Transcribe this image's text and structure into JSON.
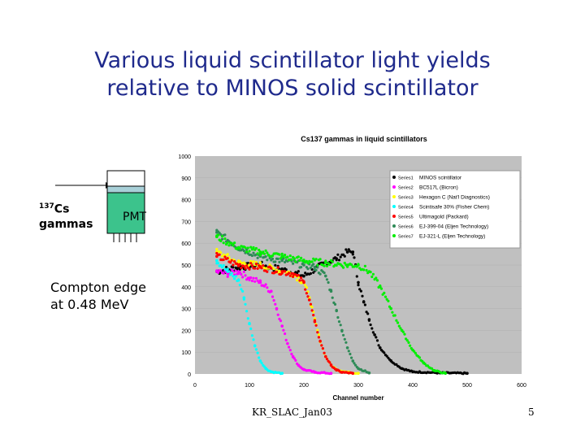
{
  "slide": {
    "title_line1": "Various liquid scintillator light yields",
    "title_line2": "relative to MINOS solid scintillator",
    "source_sup": "137",
    "source_name": "Cs",
    "source_label": "gammas",
    "pmt_label": "PMT",
    "compton_line1": "Compton edge",
    "compton_line2": "at 0.48 MeV",
    "footer": "KR_SLAC_Jan03",
    "page_number": "5"
  },
  "colors": {
    "title": "#1f2a8c",
    "plot_bg": "#c0c0c0",
    "vial_fill": "#3cc38c",
    "vial_cap": "#a8d0d8"
  },
  "chart_data": {
    "type": "scatter",
    "title": "Cs137 gammas in liquid scintillators",
    "xlabel": "Channel number",
    "ylabel": "",
    "xlim": [
      0,
      600
    ],
    "ylim": [
      0,
      1000
    ],
    "x_ticks": [
      "0",
      "100",
      "200",
      "300",
      "400",
      "500",
      "600"
    ],
    "y_ticks": [
      "0",
      "100",
      "200",
      "300",
      "400",
      "500",
      "600",
      "700",
      "800",
      "900",
      "1000"
    ],
    "legend_position": "top-right",
    "series": [
      {
        "name": "Series1",
        "label": "MINOS scintillator",
        "color": "#000000",
        "x": [
          40,
          80,
          120,
          160,
          200,
          240,
          260,
          280,
          290,
          300,
          310,
          320,
          330,
          340,
          360,
          380,
          400,
          450,
          500
        ],
        "y": [
          470,
          490,
          500,
          480,
          450,
          510,
          530,
          560,
          560,
          420,
          330,
          250,
          180,
          120,
          60,
          25,
          10,
          5,
          3
        ]
      },
      {
        "name": "Series2",
        "label": "BC517L (Bicron)",
        "color": "#ff00ff",
        "x": [
          40,
          60,
          80,
          100,
          120,
          140,
          150,
          160,
          170,
          180,
          190,
          200,
          220,
          250
        ],
        "y": [
          470,
          460,
          470,
          440,
          420,
          380,
          300,
          220,
          140,
          80,
          40,
          20,
          8,
          3
        ]
      },
      {
        "name": "Series3",
        "label": "Hexagon C (Nat'l Diagnostics)",
        "color": "#ffff00",
        "x": [
          40,
          80,
          120,
          160,
          180,
          200,
          210,
          220,
          230,
          240,
          250,
          260,
          280,
          300
        ],
        "y": [
          560,
          510,
          500,
          470,
          460,
          420,
          350,
          250,
          150,
          80,
          40,
          20,
          8,
          3
        ]
      },
      {
        "name": "Series4",
        "label": "Scintisafe 30% (Fisher Chem)",
        "color": "#00ffff",
        "x": [
          40,
          60,
          80,
          90,
          100,
          110,
          120,
          130,
          140,
          160
        ],
        "y": [
          520,
          470,
          430,
          350,
          230,
          130,
          60,
          25,
          10,
          3
        ]
      },
      {
        "name": "Series5",
        "label": "Ultimagold (Packard)",
        "color": "#ff0000",
        "x": [
          40,
          80,
          120,
          160,
          180,
          200,
          210,
          220,
          230,
          240,
          250,
          260,
          270,
          290
        ],
        "y": [
          540,
          500,
          490,
          470,
          460,
          420,
          340,
          240,
          150,
          80,
          40,
          18,
          8,
          3
        ]
      },
      {
        "name": "Series6",
        "label": "EJ-399-04 (Eljen Technology)",
        "color": "#2e8b57",
        "x": [
          40,
          80,
          120,
          160,
          200,
          220,
          240,
          250,
          260,
          270,
          280,
          290,
          300,
          320
        ],
        "y": [
          650,
          580,
          540,
          520,
          500,
          490,
          450,
          380,
          290,
          200,
          120,
          60,
          25,
          5
        ]
      },
      {
        "name": "Series7",
        "label": "EJ-321-L (Eljen Technology)",
        "color": "#00ee00",
        "x": [
          40,
          80,
          120,
          160,
          200,
          240,
          280,
          300,
          320,
          340,
          360,
          380,
          400,
          420,
          440,
          460
        ],
        "y": [
          630,
          580,
          560,
          540,
          520,
          510,
          500,
          500,
          470,
          400,
          300,
          200,
          110,
          50,
          15,
          3
        ]
      }
    ]
  }
}
